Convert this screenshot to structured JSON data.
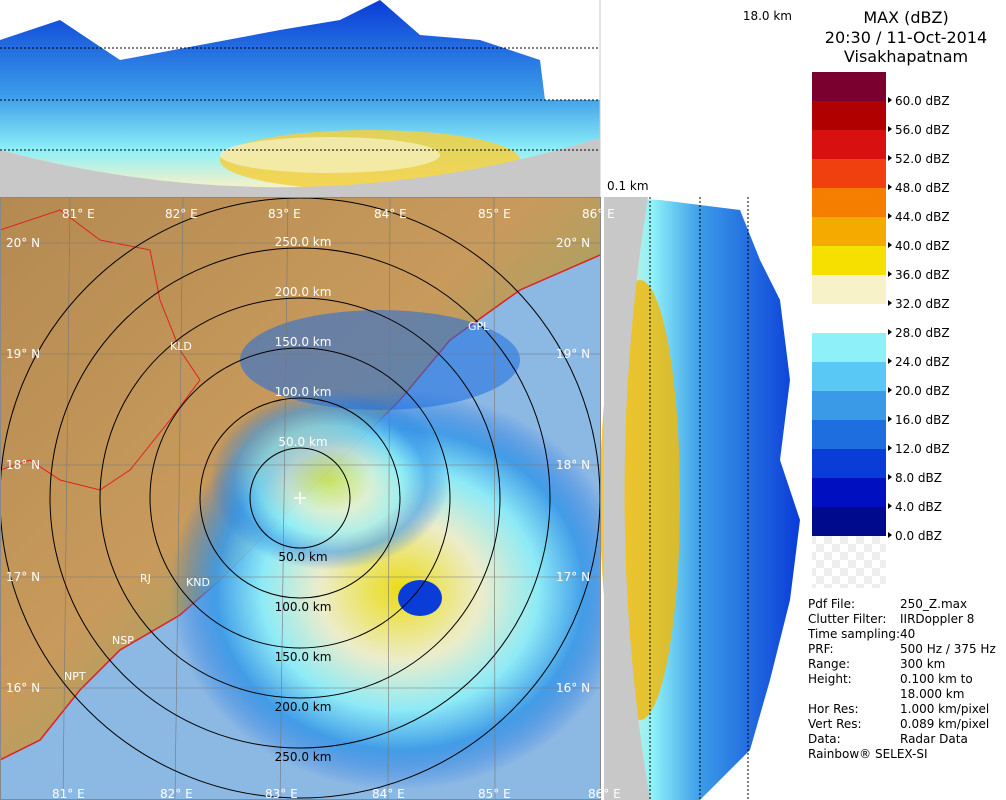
{
  "header": {
    "product": "MAX (dBZ)",
    "datetime": "20:30 / 11-Oct-2014",
    "station": "Visakhapatnam"
  },
  "height_labels": {
    "top": "18.0 km",
    "bottom": "0.1 km"
  },
  "color_scale": [
    {
      "label": "60.0 dBZ",
      "color": "#7a0030"
    },
    {
      "label": "56.0 dBZ",
      "color": "#b00000"
    },
    {
      "label": "52.0 dBZ",
      "color": "#d81010"
    },
    {
      "label": "48.0 dBZ",
      "color": "#f04010"
    },
    {
      "label": "44.0 dBZ",
      "color": "#f57d00"
    },
    {
      "label": "40.0 dBZ",
      "color": "#f5aa00"
    },
    {
      "label": "36.0 dBZ",
      "color": "#f5e000"
    },
    {
      "label": "32.0 dBZ",
      "color": "#f7f2c8"
    },
    {
      "label": "28.0 dBZ",
      "color": "#ffffff"
    },
    {
      "label": "24.0 dBZ",
      "color": "#8ef0f8"
    },
    {
      "label": "20.0 dBZ",
      "color": "#5ac8f5"
    },
    {
      "label": "16.0 dBZ",
      "color": "#3a9ae8"
    },
    {
      "label": "12.0 dBZ",
      "color": "#1e6ee0"
    },
    {
      "label": "8.0 dBZ",
      "color": "#0a3cd8"
    },
    {
      "label": "4.0 dBZ",
      "color": "#0010c0"
    },
    {
      "label": "0.0 dBZ",
      "color": "#000a8c"
    }
  ],
  "map": {
    "lon_labels": [
      "81° E",
      "82° E",
      "83° E",
      "84° E",
      "85° E",
      "86° E"
    ],
    "lat_labels": [
      "20° N",
      "19° N",
      "18° N",
      "17° N",
      "16° N"
    ],
    "range_labels_north": [
      "250.0 km",
      "200.0 km",
      "150.0 km",
      "100.0 km",
      "50.0 km"
    ],
    "range_labels_south": [
      "50.0 km",
      "100.0 km",
      "150.0 km",
      "200.0 km",
      "250.0 km"
    ],
    "places": [
      "GPL",
      "KLD",
      "RJ",
      "KND",
      "NSP",
      "NPT"
    ]
  },
  "info": [
    {
      "key": "Pdf File:",
      "value": "250_Z.max"
    },
    {
      "key": "Clutter Filter:",
      "value": "IIRDoppler 8"
    },
    {
      "key": "Time sampling:40",
      "value": ""
    },
    {
      "key": "PRF:",
      "value": "500 Hz / 375 Hz"
    },
    {
      "key": "Range:",
      "value": "300 km"
    },
    {
      "key": "Height:",
      "value": "0.100 km to 18.000 km"
    },
    {
      "key": "Hor Res:",
      "value": "1.000 km/pixel"
    },
    {
      "key": "Vert Res:",
      "value": "0.089 km/pixel"
    },
    {
      "key": "Data:",
      "value": "Radar Data"
    }
  ],
  "footer": "Rainbow® SELEX-SI"
}
